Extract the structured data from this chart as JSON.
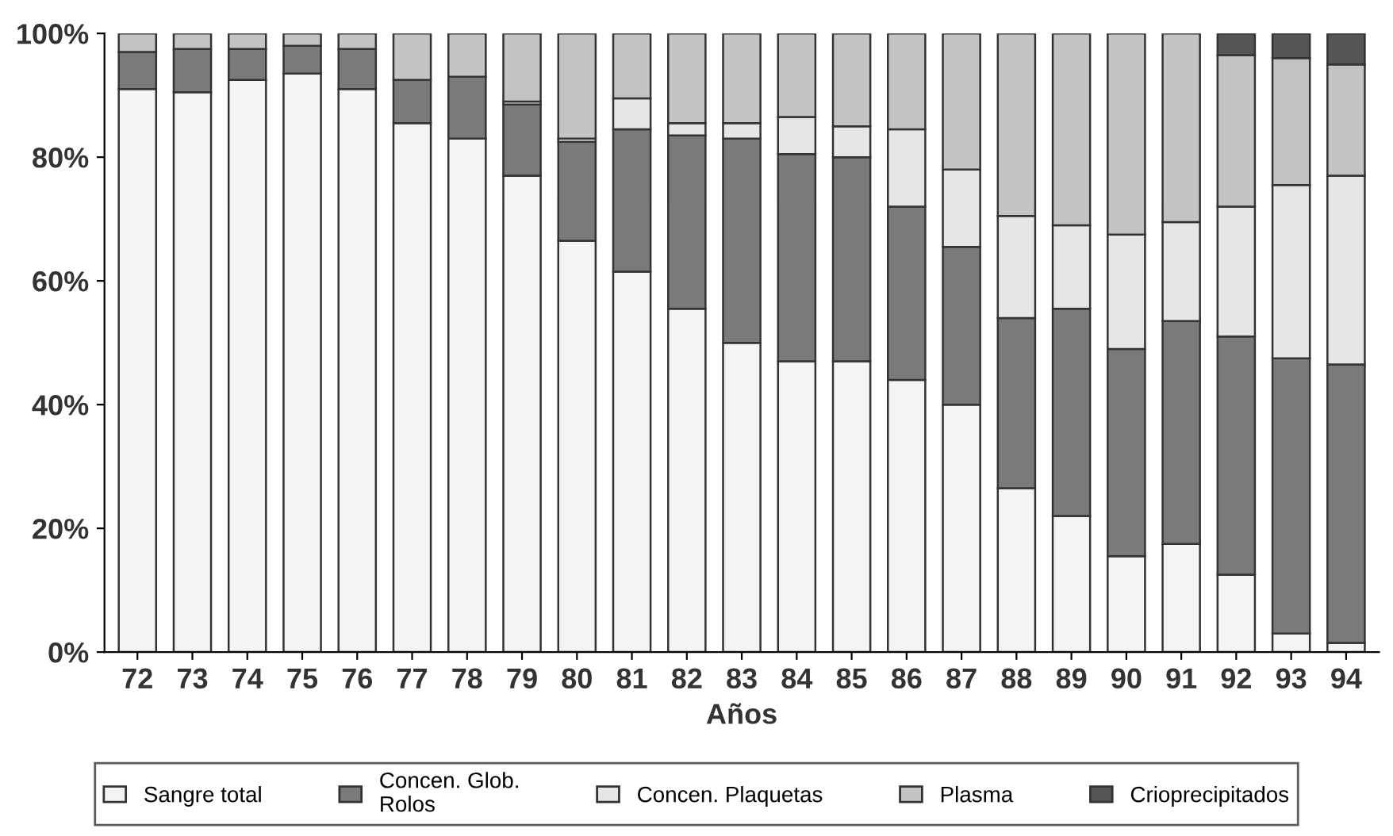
{
  "chart_data": {
    "type": "bar",
    "stacked": true,
    "xlabel": "Años",
    "categories": [
      "72",
      "73",
      "74",
      "75",
      "76",
      "77",
      "78",
      "79",
      "80",
      "81",
      "82",
      "83",
      "84",
      "85",
      "86",
      "87",
      "88",
      "89",
      "90",
      "91",
      "92",
      "93",
      "94"
    ],
    "series": [
      {
        "name": "Sangre total",
        "color": "#f4f4f4",
        "values": [
          91,
          90.5,
          92.5,
          93.5,
          91,
          85.5,
          83,
          77,
          66.5,
          61.5,
          55.5,
          50,
          47,
          47,
          44,
          40,
          26.5,
          22,
          15.5,
          17.5,
          12.5,
          3,
          1.5
        ]
      },
      {
        "name": "Concen. Glob.\nRolos",
        "color": "#7a7a7a",
        "values": [
          6,
          7,
          5,
          4.5,
          6.5,
          7,
          10,
          11.5,
          16,
          23,
          28,
          33,
          33.5,
          33,
          28,
          25.5,
          27.5,
          33.5,
          33.5,
          36,
          38.5,
          44.5,
          45
        ]
      },
      {
        "name": "Concen. Plaquetas",
        "color": "#e6e6e6",
        "values": [
          null,
          null,
          null,
          null,
          null,
          null,
          null,
          0.5,
          0.5,
          5,
          2,
          2.5,
          6,
          5,
          12.5,
          12.5,
          16.5,
          13.5,
          18.5,
          16,
          21,
          28,
          30.5
        ]
      },
      {
        "name": "Plasma",
        "color": "#c4c4c4",
        "values": [
          3,
          2.5,
          2.5,
          2,
          2.5,
          7.5,
          7,
          11,
          17,
          10.5,
          14.5,
          14.5,
          13.5,
          15,
          15.5,
          22,
          29.5,
          31,
          32.5,
          30.5,
          24.5,
          20.5,
          18
        ]
      },
      {
        "name": "Crioprecipitados",
        "color": "#555555",
        "values": [
          null,
          null,
          null,
          null,
          null,
          null,
          null,
          null,
          null,
          null,
          null,
          null,
          null,
          null,
          null,
          null,
          null,
          null,
          null,
          null,
          3.5,
          4,
          5
        ]
      }
    ],
    "ylim": [
      0,
      100
    ],
    "yticks": [
      {
        "value": 0,
        "label": "0%"
      },
      {
        "value": 20,
        "label": "20%"
      },
      {
        "value": 40,
        "label": "40%"
      },
      {
        "value": 60,
        "label": "60%"
      },
      {
        "value": 80,
        "label": "80%"
      },
      {
        "value": 100,
        "label": "100%"
      }
    ],
    "grid": false,
    "legend": "bottom"
  }
}
